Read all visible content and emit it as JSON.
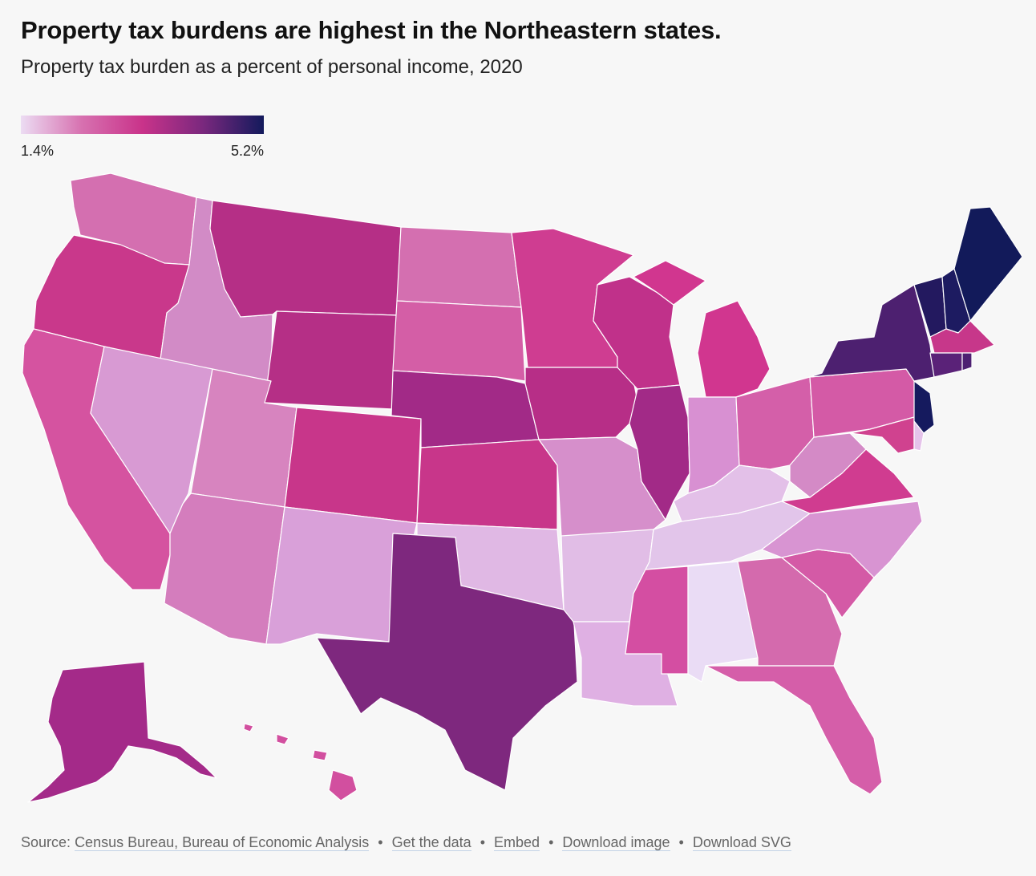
{
  "title": "Property tax burdens are highest in the Northeastern states.",
  "subtitle": "Property tax burden as a percent of personal income, 2020",
  "legend": {
    "min_label": "1.4%",
    "max_label": "5.2%",
    "colors": [
      "#ecdcf3",
      "#d771b0",
      "#c9338a",
      "#7a287e",
      "#131a5c"
    ]
  },
  "footer": {
    "source_prefix": "Source:",
    "source_text": "Census Bureau, Bureau of Economic Analysis",
    "separator": "•",
    "links": [
      "Get the data",
      "Embed",
      "Download image",
      "Download SVG"
    ]
  },
  "colors": {
    "background": "#f7f7f7",
    "state_border": "#ffffff"
  }
}
